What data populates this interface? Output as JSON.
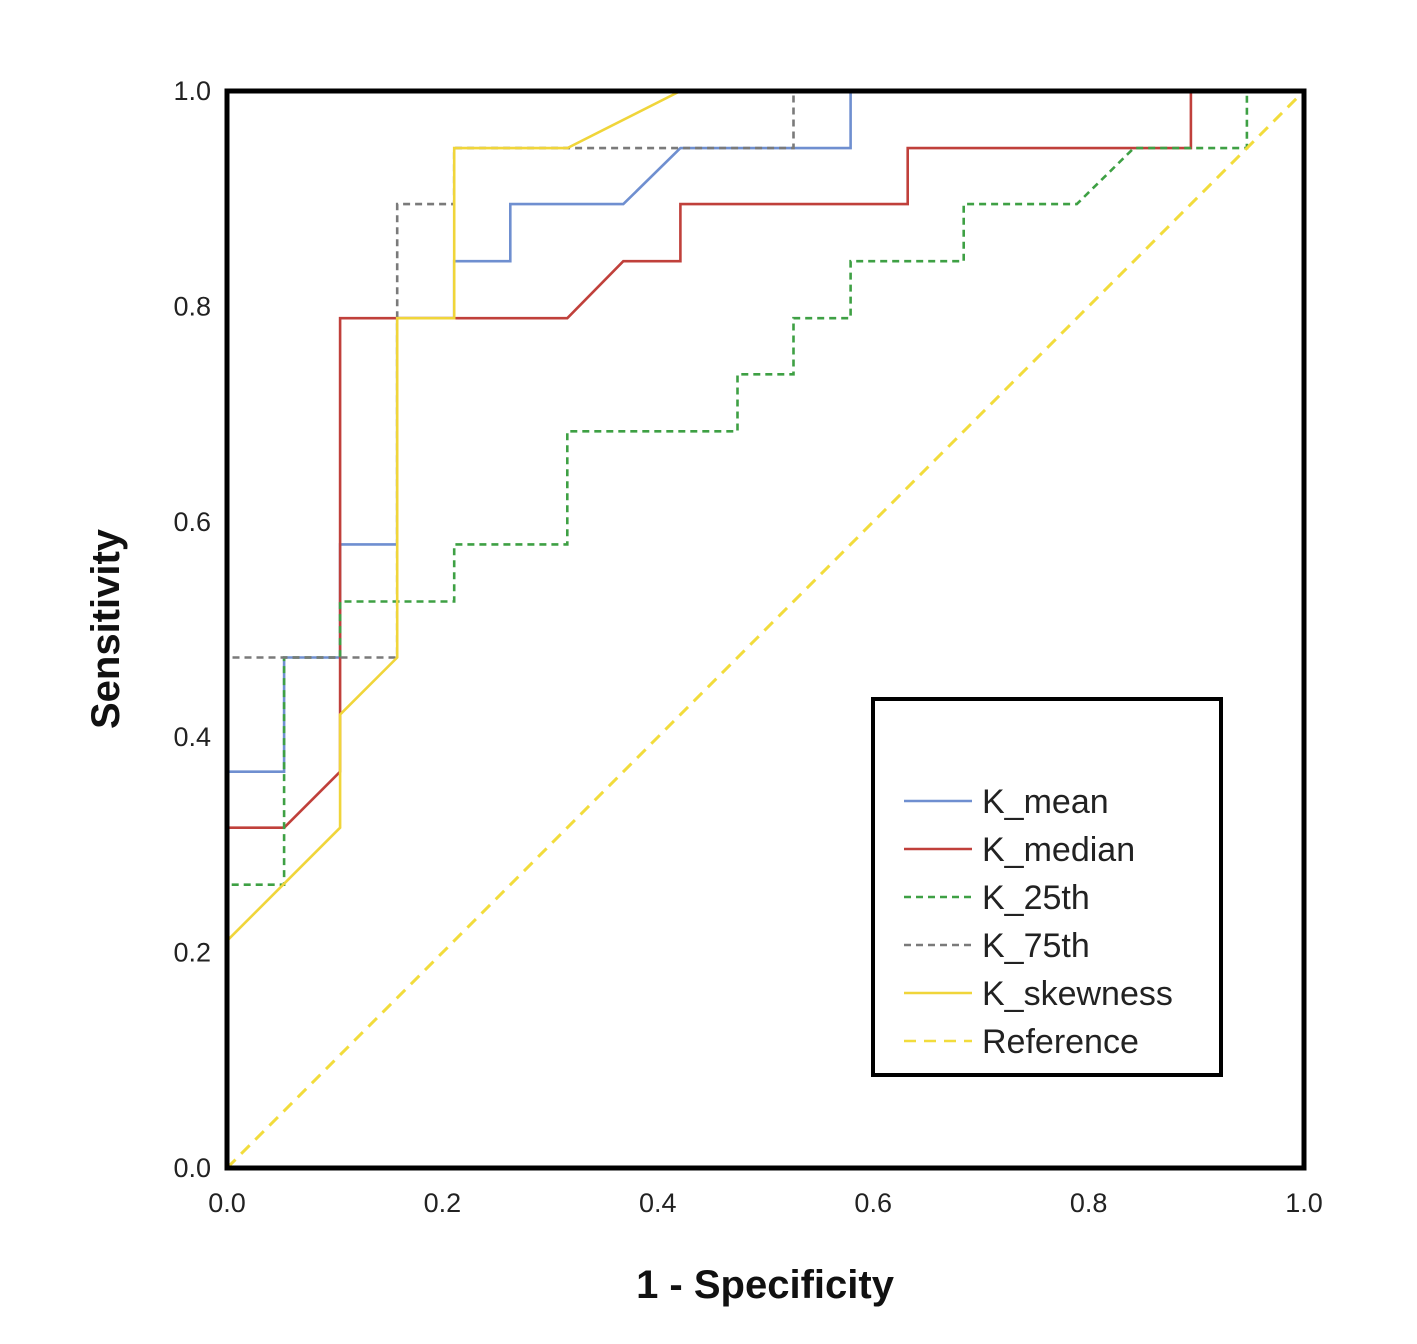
{
  "chart_data": {
    "type": "line",
    "title": "",
    "xlabel": "1 - Specificity",
    "ylabel": "Sensitivity",
    "xlim": [
      0,
      1
    ],
    "ylim": [
      0,
      1
    ],
    "xticks": [
      "0.0",
      "0.2",
      "0.4",
      "0.6",
      "0.8",
      "1.0"
    ],
    "yticks": [
      "0.0",
      "0.2",
      "0.4",
      "0.6",
      "0.8",
      "1.0"
    ],
    "grid": false,
    "legend_position": "lower-right",
    "series": [
      {
        "name": "K_mean",
        "color": "#6f8fd0",
        "dash": "solid",
        "x": [
          0,
          0,
          0.053,
          0.053,
          0.105,
          0.105,
          0.158,
          0.158,
          0.211,
          0.211,
          0.263,
          0.263,
          0.368,
          0.421,
          0.526,
          0.579,
          0.579
        ],
        "y": [
          0,
          0.368,
          0.368,
          0.474,
          0.474,
          0.579,
          0.579,
          0.789,
          0.789,
          0.842,
          0.842,
          0.895,
          0.895,
          0.947,
          0.947,
          0.947,
          1.0
        ]
      },
      {
        "name": "K_median",
        "color": "#c0403b",
        "dash": "solid",
        "x": [
          0,
          0,
          0.053,
          0.105,
          0.105,
          0.316,
          0.368,
          0.421,
          0.421,
          0.632,
          0.632,
          0.895,
          0.895,
          1.0
        ],
        "y": [
          0,
          0.316,
          0.316,
          0.368,
          0.789,
          0.789,
          0.842,
          0.842,
          0.895,
          0.895,
          0.947,
          0.947,
          1.0,
          1.0
        ]
      },
      {
        "name": "K_25th",
        "color": "#3ea044",
        "dash": "dashed",
        "x": [
          0,
          0,
          0.053,
          0.053,
          0.105,
          0.105,
          0.211,
          0.211,
          0.316,
          0.316,
          0.474,
          0.474,
          0.526,
          0.526,
          0.579,
          0.579,
          0.684,
          0.684,
          0.789,
          0.842,
          0.947,
          0.947,
          1.0
        ],
        "y": [
          0,
          0.263,
          0.263,
          0.474,
          0.474,
          0.526,
          0.526,
          0.579,
          0.579,
          0.684,
          0.684,
          0.737,
          0.737,
          0.789,
          0.789,
          0.842,
          0.842,
          0.895,
          0.895,
          0.947,
          0.947,
          1.0,
          1.0
        ]
      },
      {
        "name": "K_75th",
        "color": "#7a7a7a",
        "dash": "dashed",
        "x": [
          0,
          0,
          0.158,
          0.158,
          0.211,
          0.211,
          0.526,
          0.526,
          1.0
        ],
        "y": [
          0,
          0.474,
          0.474,
          0.895,
          0.895,
          0.947,
          0.947,
          1.0,
          1.0
        ]
      },
      {
        "name": "K_skewness",
        "color": "#f0d53a",
        "dash": "solid",
        "x": [
          0,
          0,
          0.105,
          0.105,
          0.158,
          0.158,
          0.211,
          0.211,
          0.316,
          0.421,
          1.0
        ],
        "y": [
          0,
          0.211,
          0.316,
          0.421,
          0.474,
          0.789,
          0.789,
          0.947,
          0.947,
          1.0,
          1.0
        ]
      },
      {
        "name": "Reference",
        "color": "#f2dc3c",
        "dash": "dashed",
        "x": [
          0,
          1
        ],
        "y": [
          0,
          1
        ]
      }
    ]
  }
}
